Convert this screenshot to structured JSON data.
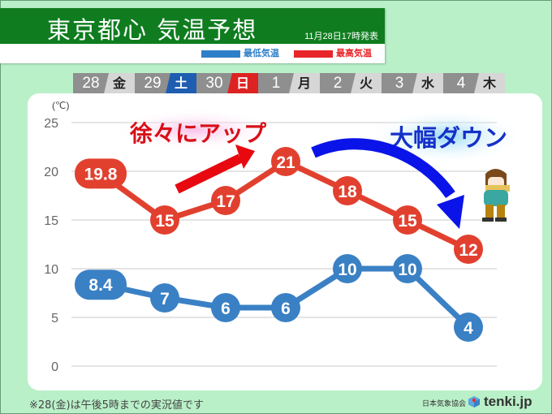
{
  "header": {
    "title": "東京都心 気温予想",
    "issued": "11月28日17時発表",
    "legend": [
      {
        "label": "最低気温",
        "color": "#2f7fc8"
      },
      {
        "label": "最高気温",
        "color": "#e8262a"
      }
    ]
  },
  "days": [
    {
      "date": "28",
      "weekday": "金",
      "type": "weekday"
    },
    {
      "date": "29",
      "weekday": "土",
      "type": "sat"
    },
    {
      "date": "30",
      "weekday": "日",
      "type": "sun"
    },
    {
      "date": "1",
      "weekday": "月",
      "type": "weekday"
    },
    {
      "date": "2",
      "weekday": "火",
      "type": "weekday"
    },
    {
      "date": "3",
      "weekday": "水",
      "type": "weekday"
    },
    {
      "date": "4",
      "weekday": "木",
      "type": "weekday"
    }
  ],
  "annotations": {
    "up": "徐々にアップ",
    "down": "大幅ダウン"
  },
  "footnote": "※28(金)は午後5時までの実況値です",
  "credit": {
    "org": "日本気象協会",
    "brand": "tenki.jp"
  },
  "chart_data": {
    "type": "line",
    "title": "東京都心 気温予想",
    "categories": [
      "28(金)",
      "29(土)",
      "30(日)",
      "1(月)",
      "2(火)",
      "3(水)",
      "4(木)"
    ],
    "series": [
      {
        "name": "最高気温",
        "color": "#e2402f",
        "values": [
          19.8,
          15,
          17,
          21,
          18,
          15,
          12
        ],
        "labels": [
          "19.8",
          "15",
          "17",
          "21",
          "18",
          "15",
          "12"
        ]
      },
      {
        "name": "最低気温",
        "color": "#3a80c4",
        "values": [
          8.4,
          7,
          6,
          6,
          10,
          10,
          4
        ],
        "labels": [
          "8.4",
          "7",
          "6",
          "6",
          "10",
          "10",
          "4"
        ]
      }
    ],
    "ylabel": "(℃)",
    "yticks": [
      0,
      5,
      10,
      15,
      20,
      25
    ],
    "ylim": [
      0,
      25
    ],
    "grid": true,
    "legend_position": "top-right"
  }
}
